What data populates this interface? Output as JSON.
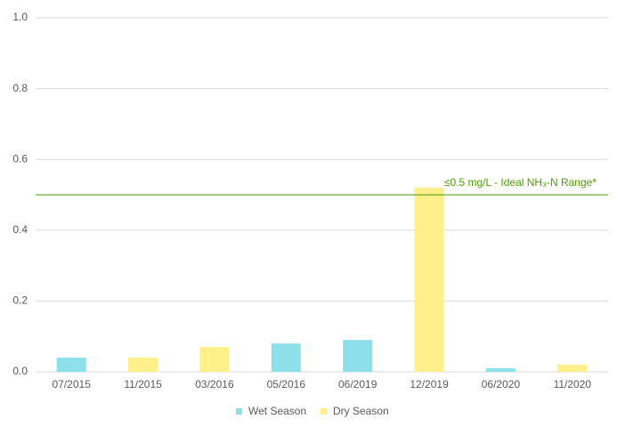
{
  "chart_data": {
    "type": "bar",
    "categories": [
      "07/2015",
      "11/2015",
      "03/2016",
      "05/2016",
      "06/2019",
      "12/2019",
      "06/2020",
      "11/2020"
    ],
    "series": [
      {
        "name": "Wet Season",
        "color": "#8de0ea",
        "values": [
          0.04,
          null,
          null,
          0.08,
          0.09,
          null,
          0.01,
          null
        ]
      },
      {
        "name": "Dry Season",
        "color": "#fff08b",
        "values": [
          null,
          0.04,
          0.07,
          null,
          null,
          0.52,
          null,
          0.02
        ]
      }
    ],
    "ylim": [
      0,
      1
    ],
    "yticks": [
      {
        "value": 0,
        "label": "0.0"
      },
      0.2,
      0.4,
      0.6,
      0.8,
      {
        "value": 1,
        "label": "1.0"
      }
    ],
    "grid": true,
    "legend": "bottom",
    "reference_line": {
      "value": 0.5,
      "label": "≤0.5 mg/L - Ideal NH₃-N Range*",
      "color": "#4e9a06"
    }
  }
}
